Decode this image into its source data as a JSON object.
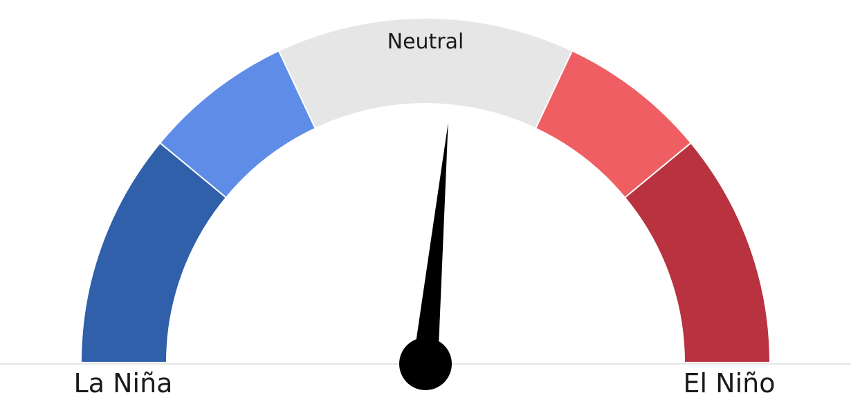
{
  "chart_data": {
    "type": "gauge",
    "segments": [
      {
        "from": 0.0,
        "to": 0.22,
        "color": "#3060aa"
      },
      {
        "from": 0.22,
        "to": 0.36,
        "color": "#5f8ce6"
      },
      {
        "from": 0.36,
        "to": 0.64,
        "color": "#e6e6e6",
        "label": "Neutral"
      },
      {
        "from": 0.64,
        "to": 0.78,
        "color": "#ee5e62"
      },
      {
        "from": 0.78,
        "to": 1.0,
        "color": "#b83240"
      }
    ],
    "needle_value": 0.53,
    "left_label": "La Niña",
    "right_label": "El Niño",
    "needle_color": "#000000",
    "baseline_color": "#cccccc"
  }
}
